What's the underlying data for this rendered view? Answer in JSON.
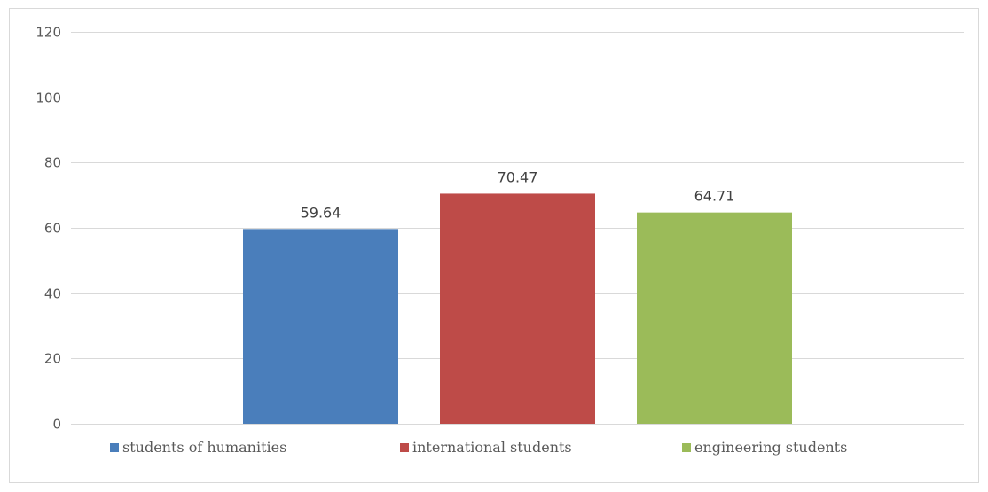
{
  "chart_data": {
    "type": "bar",
    "title": "",
    "xlabel": "",
    "ylabel": "",
    "ylim": [
      0,
      120
    ],
    "yticks": [
      0,
      20,
      40,
      60,
      80,
      100,
      120
    ],
    "grid": true,
    "legend_position": "bottom",
    "series": [
      {
        "name": "students of humanities",
        "values": [
          59.64
        ],
        "color": "#4a7ebb"
      },
      {
        "name": "international students",
        "values": [
          70.47
        ],
        "color": "#be4b48"
      },
      {
        "name": "engineering students",
        "values": [
          64.71
        ],
        "color": "#9bbb59"
      }
    ],
    "data_labels": [
      "59.64",
      "70.47",
      "64.71"
    ]
  }
}
